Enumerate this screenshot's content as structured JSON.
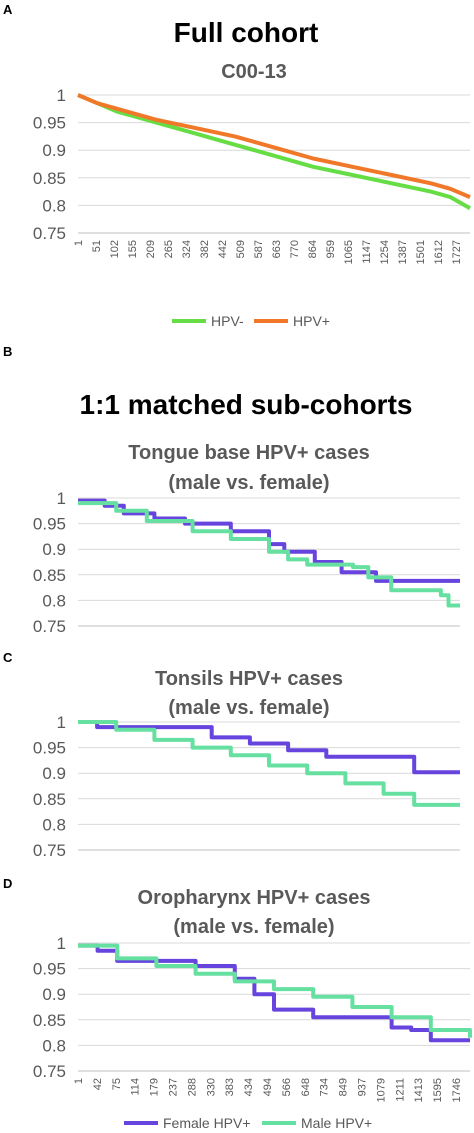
{
  "figure": {
    "panel_letters": [
      "A",
      "B",
      "C",
      "D"
    ],
    "heading_a": "Full cohort",
    "heading_b": "1:1 matched sub-cohorts"
  },
  "chart_data": [
    {
      "type": "line",
      "title": [
        "C00-13"
      ],
      "ylim": [
        0.75,
        1.0
      ],
      "yticks": [
        "1",
        "0.95",
        "0.9",
        "0.85",
        "0.8",
        "0.75"
      ],
      "grid": true,
      "x_tick_labels": [
        "1",
        "51",
        "102",
        "155",
        "209",
        "265",
        "324",
        "382",
        "442",
        "509",
        "587",
        "663",
        "770",
        "864",
        "959",
        "1065",
        "1147",
        "1254",
        "1387",
        "1501",
        "1612",
        "1727"
      ],
      "legend_position": "bottom",
      "series": [
        {
          "name": "HPV-",
          "color": "#66dd44",
          "x": [
            0,
            0.05,
            0.1,
            0.2,
            0.3,
            0.4,
            0.5,
            0.6,
            0.7,
            0.8,
            0.9,
            0.95,
            1.0
          ],
          "values": [
            1.0,
            0.985,
            0.97,
            0.95,
            0.93,
            0.91,
            0.89,
            0.87,
            0.855,
            0.84,
            0.825,
            0.815,
            0.795
          ]
        },
        {
          "name": "HPV+",
          "color": "#f07828",
          "x": [
            0,
            0.05,
            0.1,
            0.2,
            0.3,
            0.4,
            0.5,
            0.6,
            0.7,
            0.8,
            0.9,
            0.95,
            1.0
          ],
          "values": [
            1.0,
            0.985,
            0.975,
            0.955,
            0.94,
            0.925,
            0.905,
            0.885,
            0.87,
            0.855,
            0.84,
            0.83,
            0.815
          ]
        }
      ]
    },
    {
      "type": "line",
      "title": [
        "Tongue base HPV+ cases",
        "(male vs. female)"
      ],
      "ylim": [
        0.75,
        1.0
      ],
      "yticks": [
        "1",
        "0.95",
        "0.9",
        "0.85",
        "0.8",
        "0.75"
      ],
      "grid": true,
      "series": [
        {
          "name": "Female HPV+",
          "color": "#6644dd",
          "step": true,
          "x": [
            0,
            0.07,
            0.12,
            0.2,
            0.28,
            0.4,
            0.5,
            0.54,
            0.62,
            0.69,
            0.78,
            1.0
          ],
          "values": [
            0.995,
            0.985,
            0.97,
            0.96,
            0.95,
            0.935,
            0.91,
            0.895,
            0.875,
            0.855,
            0.838,
            0.838
          ]
        },
        {
          "name": "Male HPV+",
          "color": "#66e0a0",
          "step": true,
          "x": [
            0,
            0.1,
            0.18,
            0.3,
            0.4,
            0.5,
            0.55,
            0.6,
            0.72,
            0.76,
            0.82,
            0.95,
            0.97,
            1.0
          ],
          "values": [
            0.99,
            0.975,
            0.955,
            0.935,
            0.92,
            0.895,
            0.88,
            0.87,
            0.865,
            0.845,
            0.82,
            0.81,
            0.79,
            0.79
          ]
        }
      ]
    },
    {
      "type": "line",
      "title": [
        "Tonsils HPV+ cases",
        "(male vs. female)"
      ],
      "ylim": [
        0.75,
        1.0
      ],
      "yticks": [
        "1",
        "0.95",
        "0.9",
        "0.85",
        "0.8",
        "0.75"
      ],
      "grid": true,
      "series": [
        {
          "name": "Female HPV+",
          "color": "#6644dd",
          "step": true,
          "x": [
            0,
            0.05,
            0.1,
            0.35,
            0.45,
            0.55,
            0.65,
            0.86,
            0.88,
            1.0
          ],
          "values": [
            1.0,
            0.99,
            0.99,
            0.97,
            0.958,
            0.945,
            0.932,
            0.932,
            0.902,
            0.902
          ]
        },
        {
          "name": "Male HPV+",
          "color": "#66e0a0",
          "step": true,
          "x": [
            0,
            0.1,
            0.2,
            0.3,
            0.4,
            0.5,
            0.6,
            0.7,
            0.8,
            0.88,
            1.0
          ],
          "values": [
            1.0,
            0.985,
            0.965,
            0.95,
            0.935,
            0.915,
            0.9,
            0.88,
            0.86,
            0.838,
            0.838
          ]
        }
      ]
    },
    {
      "type": "line",
      "title": [
        "Oropharynx HPV+ cases",
        "(male vs. female)"
      ],
      "ylim": [
        0.75,
        1.0
      ],
      "yticks": [
        "1",
        "0.95",
        "0.9",
        "0.85",
        "0.8",
        "0.75"
      ],
      "grid": true,
      "x_tick_labels": [
        "1",
        "42",
        "75",
        "114",
        "179",
        "237",
        "288",
        "330",
        "383",
        "434",
        "494",
        "566",
        "648",
        "734",
        "849",
        "937",
        "1079",
        "1211",
        "1413",
        "1595",
        "1746"
      ],
      "legend_position": "bottom",
      "series": [
        {
          "name": "Female HPV+",
          "color": "#6644dd",
          "step": true,
          "x": [
            0,
            0.05,
            0.1,
            0.3,
            0.4,
            0.45,
            0.5,
            0.6,
            0.75,
            0.8,
            0.85,
            0.9,
            1.0
          ],
          "values": [
            0.995,
            0.985,
            0.965,
            0.955,
            0.93,
            0.9,
            0.87,
            0.855,
            0.855,
            0.835,
            0.83,
            0.81,
            0.81
          ]
        },
        {
          "name": "Male HPV+",
          "color": "#66e0a0",
          "step": true,
          "x": [
            0,
            0.1,
            0.2,
            0.3,
            0.4,
            0.5,
            0.6,
            0.7,
            0.8,
            0.9,
            1.0
          ],
          "values": [
            0.995,
            0.97,
            0.955,
            0.94,
            0.925,
            0.91,
            0.895,
            0.875,
            0.855,
            0.83,
            0.815
          ]
        }
      ]
    }
  ]
}
